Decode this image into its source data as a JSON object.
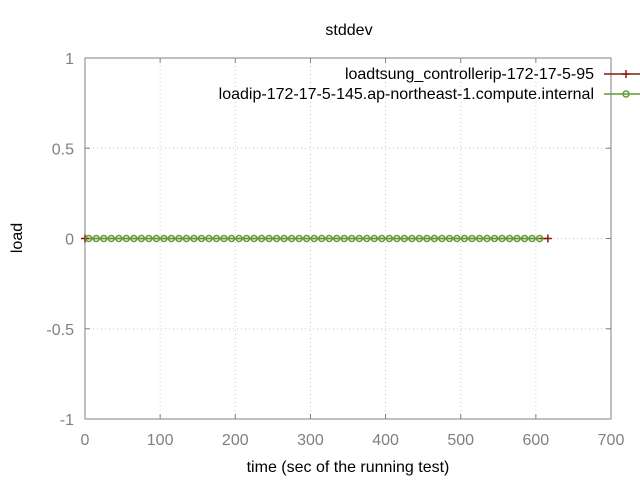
{
  "chart_data": {
    "type": "line",
    "title": "stddev",
    "xlabel": "time (sec of the running test)",
    "ylabel": "load",
    "xlim": [
      0,
      700
    ],
    "ylim": [
      -1,
      1
    ],
    "xticks": [
      "0",
      "100",
      "200",
      "300",
      "400",
      "500",
      "600",
      "700"
    ],
    "yticks": [
      "1",
      "0.5",
      "0",
      "-0.5",
      "-1"
    ],
    "grid": true,
    "legend_position": "top-right",
    "series": [
      {
        "name": "loadtsung_controllerip-172-17-5-95",
        "color": "#8b1a0e",
        "marker": "plus",
        "x": [
          0,
          616
        ],
        "y": [
          0,
          0
        ]
      },
      {
        "name": "loadip-172-17-5-145.ap-northeast-1.compute.internal",
        "color": "#5e9c36",
        "marker": "circle",
        "x_start": 5,
        "x_step": 10,
        "x_end": 605,
        "y_value": 0
      }
    ]
  }
}
